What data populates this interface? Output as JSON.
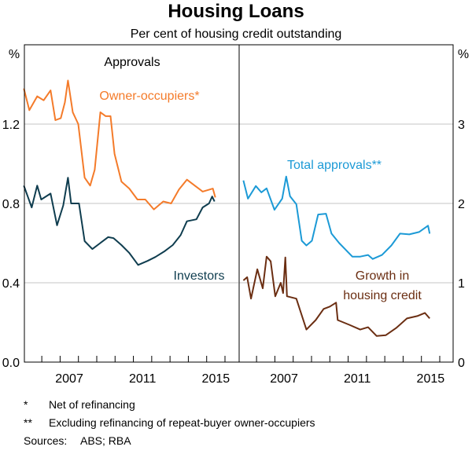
{
  "chart_data": [
    {
      "type": "line",
      "panel": "left",
      "title": "Housing Loans",
      "subtitle": "Per cent of housing credit outstanding",
      "panel_label": "Approvals",
      "ylabel": "%",
      "ylim": [
        0,
        1.6
      ],
      "yticks": [
        "0.0",
        "0.4",
        "0.8",
        "1.2"
      ],
      "yticks_values": [
        0,
        0.4,
        0.8,
        1.2
      ],
      "xlim": [
        2005.05,
        2016.73
      ],
      "xtick_labels": [
        "2007",
        "2011",
        "2015"
      ],
      "grid": true,
      "series": [
        {
          "name": "Owner-occupiers*",
          "color": "#F47B2A",
          "x": [
            2005.02,
            2005.32,
            2005.75,
            2006.1,
            2006.48,
            2006.74,
            2007.04,
            2007.26,
            2007.43,
            2007.69,
            2007.99,
            2008.34,
            2008.64,
            2008.89,
            2009.2,
            2009.49,
            2009.75,
            2009.97,
            2010.35,
            2010.78,
            2011.22,
            2011.65,
            2012.12,
            2012.63,
            2013.06,
            2013.49,
            2013.92,
            2014.35,
            2014.78,
            2015.34,
            2015.47
          ],
          "y": [
            1.38,
            1.27,
            1.34,
            1.32,
            1.37,
            1.22,
            1.23,
            1.31,
            1.42,
            1.26,
            1.2,
            0.93,
            0.89,
            0.97,
            1.26,
            1.24,
            1.24,
            1.05,
            0.91,
            0.875,
            0.82,
            0.82,
            0.77,
            0.81,
            0.8,
            0.87,
            0.92,
            0.89,
            0.86,
            0.875,
            0.83
          ]
        },
        {
          "name": "Investors",
          "color": "#0F3D4F",
          "x": [
            2005.02,
            2005.45,
            2005.75,
            2005.97,
            2006.48,
            2006.83,
            2007.17,
            2007.43,
            2007.6,
            2008.03,
            2008.34,
            2008.76,
            2009.19,
            2009.62,
            2009.92,
            2010.35,
            2010.78,
            2011.26,
            2011.77,
            2012.2,
            2012.72,
            2013.15,
            2013.58,
            2013.92,
            2014.44,
            2014.78,
            2015.13,
            2015.3,
            2015.43
          ],
          "y": [
            0.89,
            0.78,
            0.89,
            0.82,
            0.85,
            0.69,
            0.79,
            0.93,
            0.8,
            0.8,
            0.61,
            0.57,
            0.6,
            0.63,
            0.625,
            0.59,
            0.55,
            0.49,
            0.51,
            0.53,
            0.56,
            0.59,
            0.64,
            0.71,
            0.72,
            0.78,
            0.8,
            0.835,
            0.81
          ]
        }
      ]
    },
    {
      "type": "line",
      "panel": "right",
      "ylabel": "%",
      "ylim": [
        0,
        4
      ],
      "yticks": [
        "0",
        "1",
        "2",
        "3"
      ],
      "yticks_values": [
        0,
        1,
        2,
        3
      ],
      "xlim": [
        2005.05,
        2016.73
      ],
      "xtick_labels": [
        "2007",
        "2011",
        "2015"
      ],
      "grid": true,
      "series": [
        {
          "name": "Total approvals**",
          "color": "#1C9AD6",
          "x": [
            2005.28,
            2005.53,
            2005.96,
            2006.26,
            2006.55,
            2006.98,
            2007.4,
            2007.62,
            2007.83,
            2008.17,
            2008.47,
            2008.72,
            2009.02,
            2009.36,
            2009.79,
            2010.09,
            2010.51,
            2011.23,
            2011.66,
            2012.09,
            2012.34,
            2012.85,
            2013.36,
            2013.83,
            2014.34,
            2014.87,
            2015.36,
            2015.45
          ],
          "y": [
            2.29,
            2.06,
            2.22,
            2.14,
            2.19,
            1.92,
            2.06,
            2.34,
            2.09,
            1.99,
            1.53,
            1.47,
            1.53,
            1.86,
            1.87,
            1.62,
            1.5,
            1.33,
            1.33,
            1.35,
            1.3,
            1.35,
            1.47,
            1.62,
            1.61,
            1.64,
            1.72,
            1.62
          ]
        },
        {
          "name": "Growth in housing credit",
          "name_lines": [
            "Growth in",
            "housing credit"
          ],
          "color": "#6B2E12",
          "x": [
            2005.28,
            2005.49,
            2005.7,
            2006.04,
            2006.34,
            2006.55,
            2006.77,
            2007.02,
            2007.32,
            2007.45,
            2007.57,
            2007.66,
            2008.17,
            2008.72,
            2009.23,
            2009.66,
            2010.0,
            2010.34,
            2010.43,
            2011.06,
            2011.66,
            2012.09,
            2012.55,
            2013.06,
            2013.62,
            2014.21,
            2014.77,
            2015.19,
            2015.45
          ],
          "y": [
            1.03,
            1.07,
            0.8,
            1.17,
            0.93,
            1.33,
            1.27,
            0.83,
            1.0,
            0.87,
            1.32,
            0.83,
            0.8,
            0.41,
            0.53,
            0.67,
            0.7,
            0.75,
            0.53,
            0.47,
            0.41,
            0.44,
            0.33,
            0.34,
            0.43,
            0.55,
            0.58,
            0.62,
            0.55
          ]
        }
      ]
    }
  ],
  "footnotes": [
    {
      "mark": "*",
      "text": "Net of refinancing"
    },
    {
      "mark": "**",
      "text": "Excluding refinancing of repeat-buyer owner-occupiers"
    }
  ],
  "sources": {
    "label": "Sources:",
    "text": "ABS; RBA"
  }
}
